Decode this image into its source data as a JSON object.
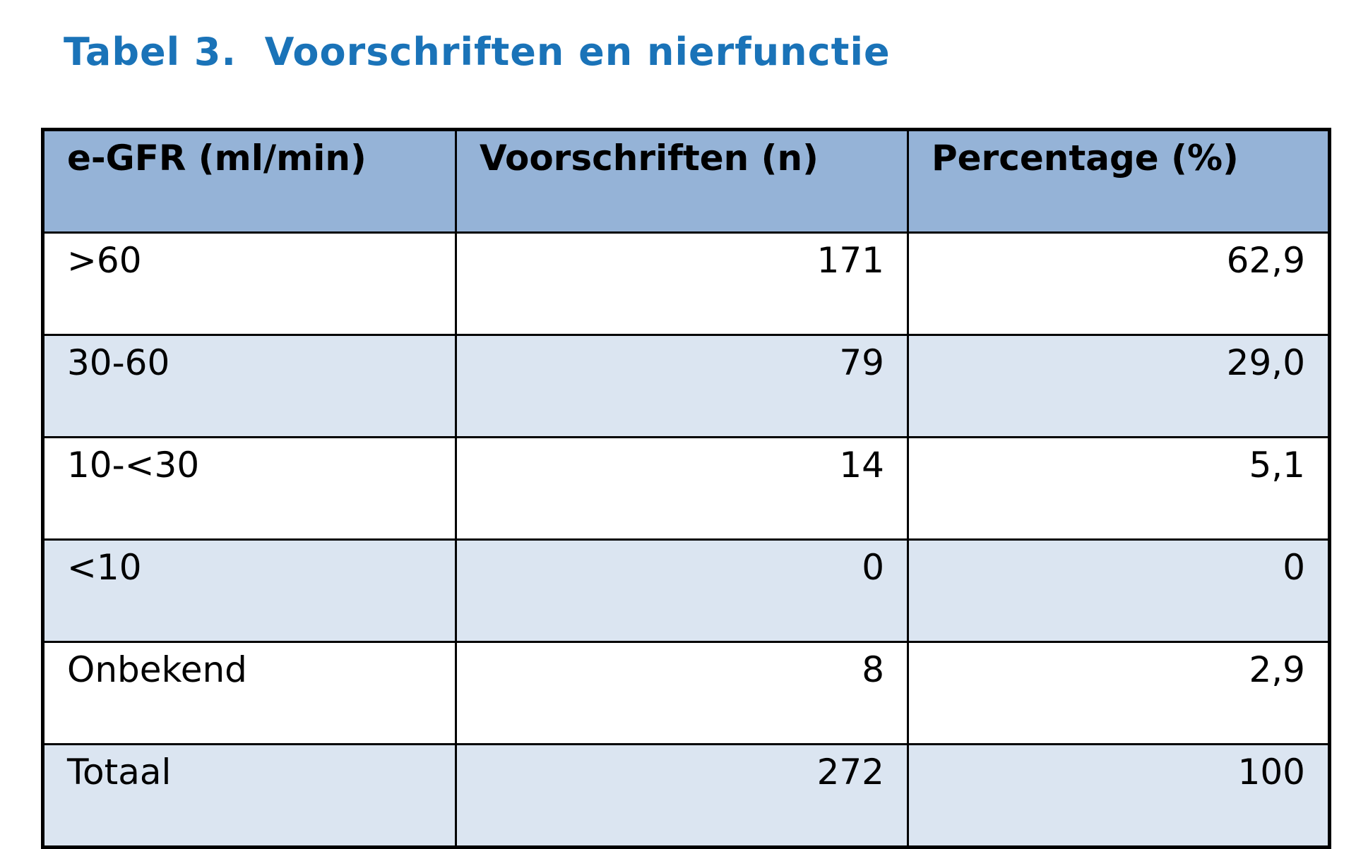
{
  "title": "Tabel 3.  Voorschriften en nierfunctie",
  "table": {
    "headers": [
      "e-GFR (ml/min)",
      "Voorschriften (n)",
      "Percentage (%)"
    ],
    "rows": [
      [
        ">60",
        "171",
        "62,9"
      ],
      [
        "30-60",
        "79",
        "29,0"
      ],
      [
        "10-<30",
        "14",
        "5,1"
      ],
      [
        "<10",
        "0",
        "0"
      ],
      [
        "Onbekend",
        "8",
        "2,9"
      ]
    ],
    "total": [
      "Totaal",
      "272",
      "100"
    ]
  },
  "colors": {
    "title": "#1a73b8",
    "header_bg": "#95b3d7",
    "alt_row_bg": "#dbe5f1",
    "border": "#000000"
  }
}
